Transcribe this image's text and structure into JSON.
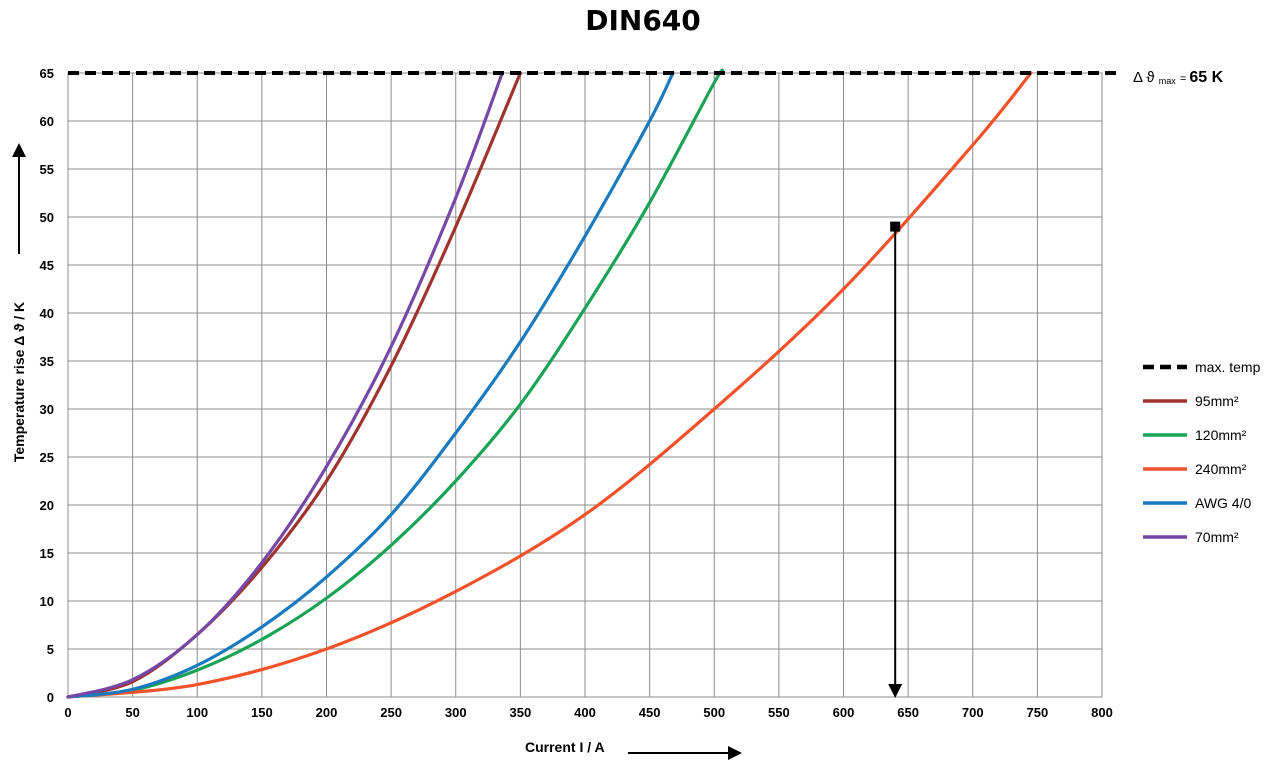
{
  "chart_data": {
    "type": "line",
    "title": "DIN640",
    "xlabel": "Current I / A",
    "ylabel": "Temperature rise Δ ϑ / K",
    "xlim": [
      0,
      800
    ],
    "ylim": [
      0,
      65
    ],
    "x_ticks": [
      "0",
      "50",
      "100",
      "150",
      "200",
      "250",
      "300",
      "350",
      "400",
      "450",
      "500",
      "550",
      "600",
      "650",
      "700",
      "750",
      "800"
    ],
    "y_ticks": [
      "0",
      "5",
      "10",
      "15",
      "20",
      "25",
      "30",
      "35",
      "40",
      "45",
      "50",
      "55",
      "60",
      "65"
    ],
    "grid": true,
    "legend_position": "right",
    "max_line": {
      "name": "max. temp",
      "value": 65,
      "color": "#000000",
      "style": "dashed"
    },
    "annotation": {
      "prefix": "Δ ϑ",
      "sub": "max",
      "equals": " = ",
      "value_text": "65 K"
    },
    "marker": {
      "x": 640,
      "y": 49,
      "arrow_to_y": 0
    },
    "series": [
      {
        "name": "95mm²",
        "color": "#a0332e",
        "x": [
          0,
          50,
          100,
          150,
          200,
          250,
          300,
          350
        ],
        "y": [
          0,
          1.6,
          6.5,
          13.5,
          22.5,
          34.5,
          49,
          65
        ]
      },
      {
        "name": "120mm²",
        "color": "#1aa354",
        "x": [
          0,
          50,
          100,
          150,
          200,
          250,
          300,
          350,
          400,
          450,
          500,
          506
        ],
        "y": [
          0,
          0.7,
          2.8,
          6,
          10.3,
          15.8,
          22.5,
          30.5,
          40.5,
          51.5,
          64,
          65
        ]
      },
      {
        "name": "240mm²",
        "color": "#f2522a",
        "x": [
          0,
          100,
          200,
          300,
          400,
          500,
          600,
          700,
          745
        ],
        "y": [
          0,
          1.3,
          5,
          11,
          19,
          30,
          42.5,
          57.5,
          65
        ]
      },
      {
        "name": "AWG 4/0",
        "color": "#1a7abf",
        "x": [
          0,
          50,
          100,
          150,
          200,
          250,
          300,
          350,
          400,
          450,
          468
        ],
        "y": [
          0,
          0.8,
          3.3,
          7.3,
          12.5,
          19,
          27.5,
          37,
          48,
          60,
          65
        ]
      },
      {
        "name": "70mm²",
        "color": "#7548a8",
        "x": [
          0,
          50,
          100,
          150,
          200,
          250,
          300,
          336
        ],
        "y": [
          0,
          1.8,
          6.5,
          14,
          24,
          36.5,
          52,
          65
        ]
      }
    ]
  }
}
